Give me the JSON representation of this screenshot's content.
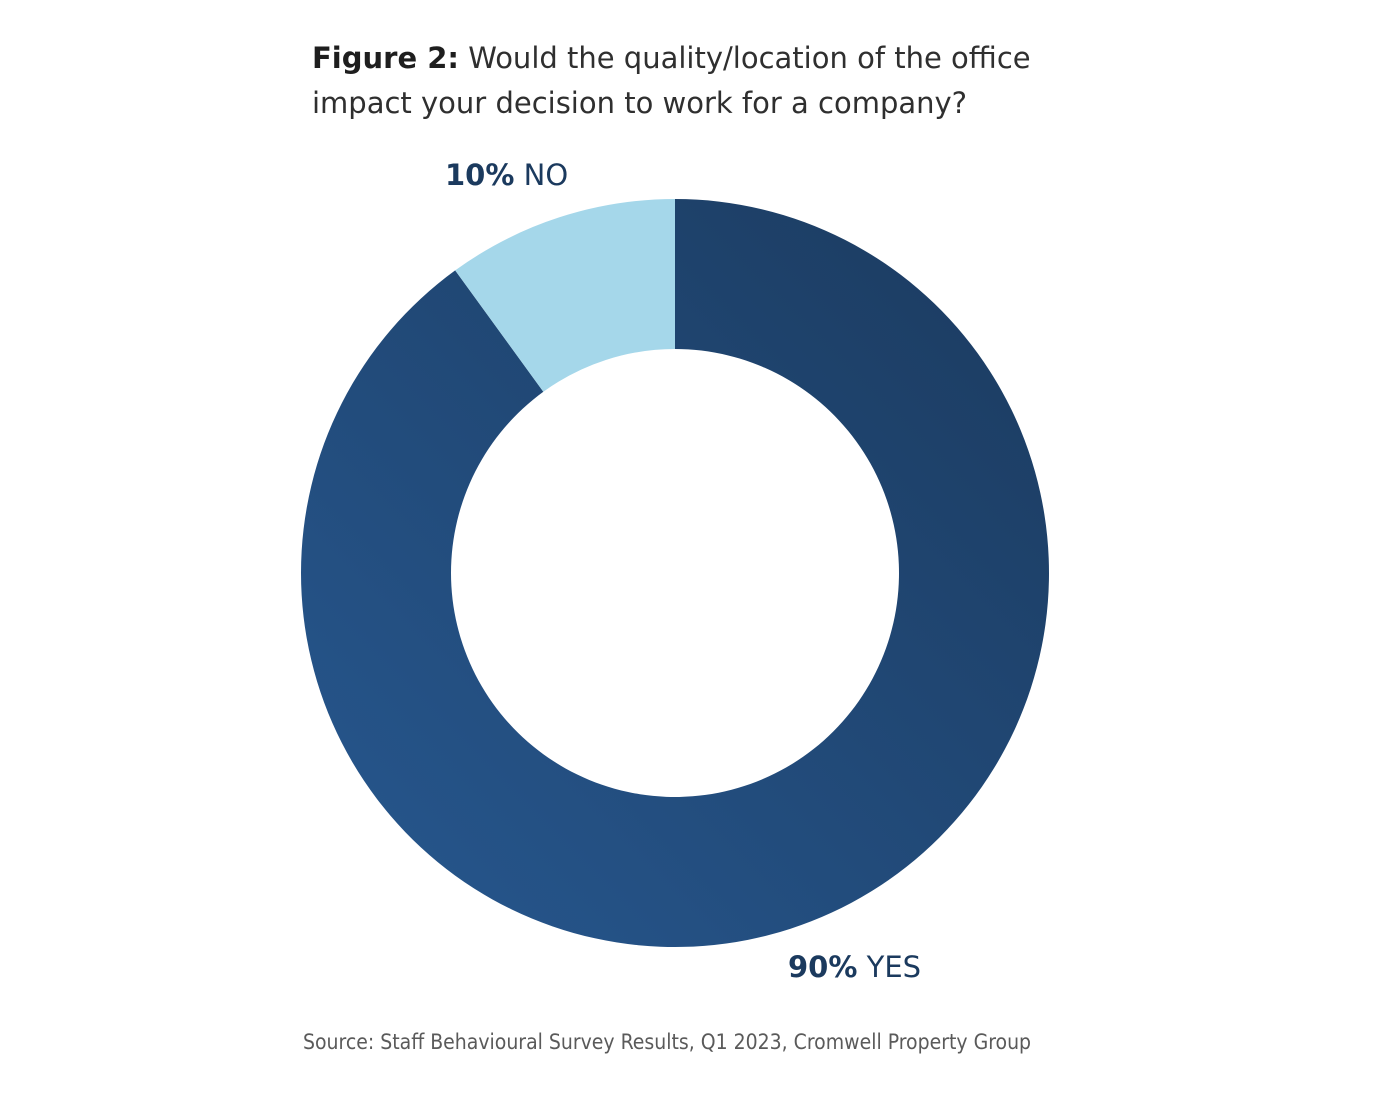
{
  "figure": {
    "label": "Figure 2:",
    "question": "Would the quality/location of the office impact your decision to work for a company?"
  },
  "chart_data": {
    "type": "pie",
    "variant": "donut",
    "title": "Figure 2: Would the quality/location of the office impact your decision to work for a company?",
    "slices": [
      {
        "name": "YES",
        "value": 90,
        "pct_label": "90%",
        "color_start": "#275890",
        "color_end": "#1b3a5e"
      },
      {
        "name": "NO",
        "value": 10,
        "pct_label": "10%",
        "color": "#a5d7ea"
      }
    ],
    "start": "top (12 o'clock)",
    "direction": "clockwise"
  },
  "source": "Source: Staff Behavioural Survey Results, Q1 2023, Cromwell Property Group"
}
